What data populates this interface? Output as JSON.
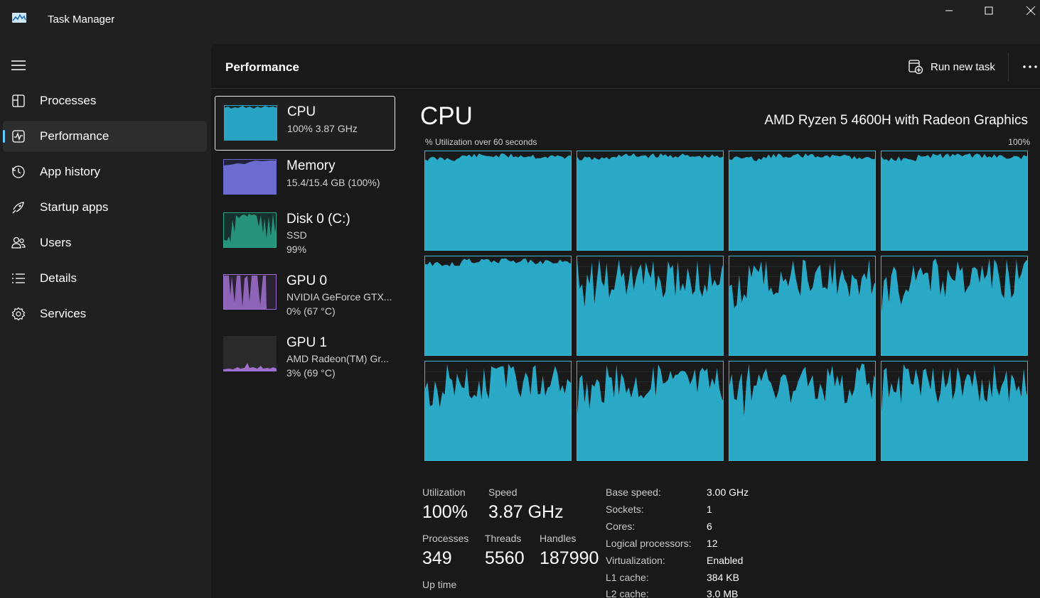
{
  "window": {
    "title": "Task Manager"
  },
  "sidebar": {
    "items": [
      {
        "label": "Processes",
        "icon": "processes-icon"
      },
      {
        "label": "Performance",
        "icon": "performance-icon"
      },
      {
        "label": "App history",
        "icon": "history-icon"
      },
      {
        "label": "Startup apps",
        "icon": "startup-icon"
      },
      {
        "label": "Users",
        "icon": "users-icon"
      },
      {
        "label": "Details",
        "icon": "details-icon"
      },
      {
        "label": "Services",
        "icon": "services-icon"
      }
    ],
    "active": "Performance"
  },
  "header": {
    "title": "Performance",
    "run_task_label": "Run new task"
  },
  "resources": [
    {
      "name": "CPU",
      "line1": "100%  3.87 GHz",
      "color": "#2aa4c4",
      "selected": true
    },
    {
      "name": "Memory",
      "line1": "15.4/15.4 GB (100%)",
      "color": "#6c6bd0"
    },
    {
      "name": "Disk 0 (C:)",
      "line1": "SSD",
      "line2": "99%",
      "color": "#2aa58a"
    },
    {
      "name": "GPU 0",
      "line1": "NVIDIA GeForce GTX...",
      "line2": "0%  (67 °C)",
      "color": "#a070d0"
    },
    {
      "name": "GPU 1",
      "line1": "AMD Radeon(TM) Gr...",
      "line2": "3%  (69 °C)",
      "color": "#a070d0"
    }
  ],
  "cpu": {
    "title": "CPU",
    "model": "AMD Ryzen 5 4600H with Radeon Graphics",
    "graph_caption": "% Utilization over 60 seconds",
    "graph_max": "100%",
    "graph_color": "#2aa9c6",
    "logical_cores": 12,
    "stats": {
      "utilization_label": "Utilization",
      "utilization": "100%",
      "speed_label": "Speed",
      "speed": "3.87 GHz",
      "processes_label": "Processes",
      "processes": "349",
      "threads_label": "Threads",
      "threads": "5560",
      "handles_label": "Handles",
      "handles": "187990",
      "uptime_label": "Up time"
    },
    "specs": [
      {
        "key": "Base speed:",
        "value": "3.00 GHz"
      },
      {
        "key": "Sockets:",
        "value": "1"
      },
      {
        "key": "Cores:",
        "value": "6"
      },
      {
        "key": "Logical processors:",
        "value": "12"
      },
      {
        "key": "Virtualization:",
        "value": "Enabled"
      },
      {
        "key": "L1 cache:",
        "value": "384 KB"
      },
      {
        "key": "L2 cache:",
        "value": "3.0 MB"
      }
    ]
  }
}
